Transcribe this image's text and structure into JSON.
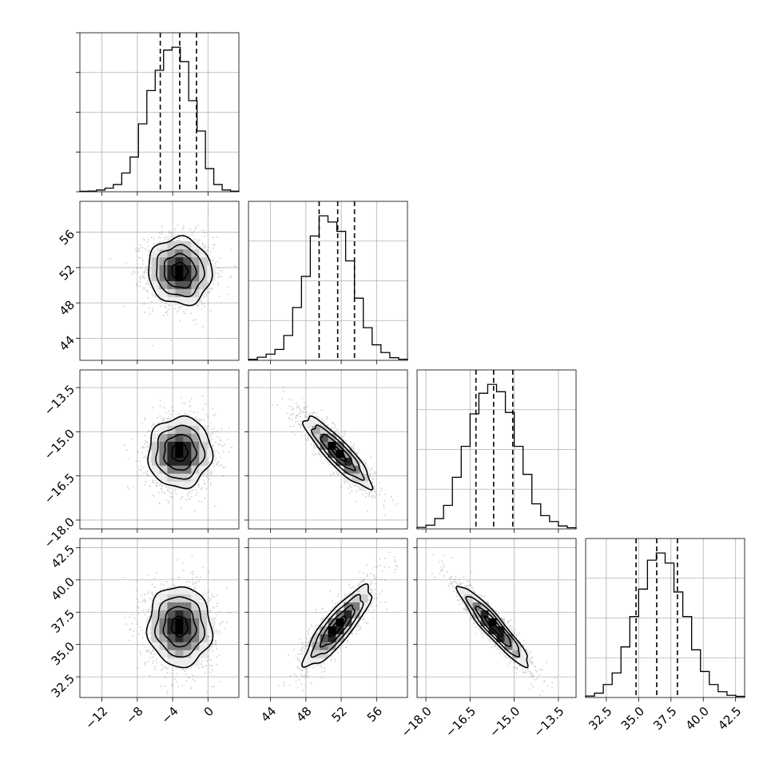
{
  "chart_data": {
    "type": "corner",
    "parameters": [
      {
        "range": [
          -14.5,
          3.5
        ],
        "ticks": [
          -12,
          -8,
          -4,
          0
        ],
        "tick_labels": [
          "−12",
          "−8",
          "−4",
          "0"
        ],
        "quantiles": [
          -5.4,
          -3.2,
          -1.3
        ],
        "mean": -3.2,
        "sd": 1.8
      },
      {
        "range": [
          41.5,
          59.5
        ],
        "ticks": [
          44,
          48,
          52,
          56
        ],
        "tick_labels": [
          "44",
          "48",
          "52",
          "56"
        ],
        "quantiles": [
          49.5,
          51.6,
          53.5
        ],
        "mean": 51.6,
        "sd": 1.9
      },
      {
        "range": [
          -18.3,
          -12.9
        ],
        "ticks": [
          -18.0,
          -16.5,
          -15.0,
          -13.5
        ],
        "tick_labels": [
          "−18.0",
          "−16.5",
          "−15.0",
          "−13.5"
        ],
        "quantiles": [
          -16.3,
          -15.7,
          -15.05
        ],
        "mean": -15.7,
        "sd": 0.6
      },
      {
        "range": [
          30.9,
          43.2
        ],
        "ticks": [
          32.5,
          35.0,
          37.5,
          40.0,
          42.5
        ],
        "tick_labels": [
          "32.5",
          "35.0",
          "37.5",
          "40.0",
          "42.5"
        ],
        "quantiles": [
          34.8,
          36.4,
          38.0
        ],
        "mean": 36.4,
        "sd": 1.55
      }
    ],
    "histograms": [
      [
        0.003,
        0.005,
        0.012,
        0.025,
        0.05,
        0.13,
        0.24,
        0.47,
        0.7,
        0.84,
        0.98,
        1.0,
        0.9,
        0.63,
        0.42,
        0.16,
        0.05,
        0.012,
        0.004
      ],
      [
        0.006,
        0.02,
        0.04,
        0.07,
        0.16,
        0.34,
        0.54,
        0.8,
        0.93,
        0.89,
        0.83,
        0.64,
        0.4,
        0.21,
        0.1,
        0.05,
        0.017,
        0.007
      ],
      [
        0.01,
        0.025,
        0.07,
        0.16,
        0.35,
        0.56,
        0.78,
        0.92,
        0.98,
        0.93,
        0.79,
        0.56,
        0.37,
        0.17,
        0.09,
        0.05,
        0.02,
        0.008
      ],
      [
        0.01,
        0.03,
        0.09,
        0.17,
        0.35,
        0.56,
        0.75,
        0.95,
        1.0,
        0.93,
        0.73,
        0.56,
        0.33,
        0.18,
        0.09,
        0.04,
        0.015,
        0.008
      ]
    ],
    "correlations": {
      "1-0": -0.05,
      "2-0": 0.03,
      "2-1": -0.88,
      "3-0": -0.03,
      "3-1": 0.85,
      "3-2": -0.93
    },
    "contour_levels": [
      0.5,
      1.0,
      1.5,
      2.0
    ],
    "grid": true,
    "quantile_style": "dashed",
    "colors": {
      "line": "#000000",
      "grid": "#b0b0b0",
      "density_dark": "#000000",
      "density_light": "#ffffff"
    }
  }
}
